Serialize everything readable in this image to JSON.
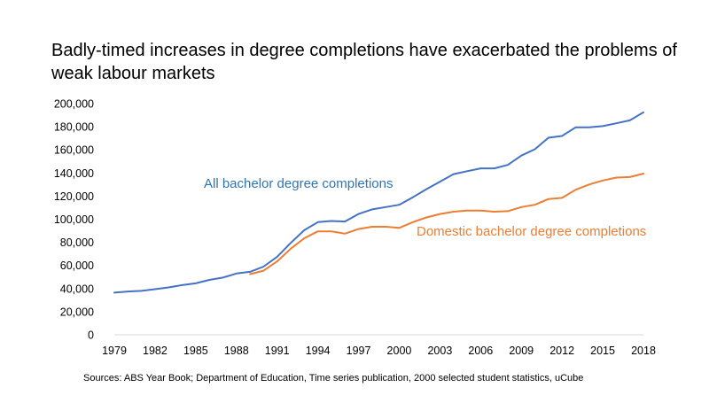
{
  "chart_data": {
    "type": "line",
    "title": "Badly-timed increases in degree completions have exacerbated the problems of weak labour markets",
    "source": "Sources: ABS Year Book; Department of Education, Time series publication, 2000 selected student statistics, uCube",
    "xlabel": "",
    "ylabel": "",
    "xlim": [
      1979,
      2018
    ],
    "ylim": [
      0,
      200000
    ],
    "x_ticks": [
      "1979",
      "1982",
      "1985",
      "1988",
      "1991",
      "1994",
      "1997",
      "2000",
      "2003",
      "2006",
      "2009",
      "2012",
      "2015",
      "2018"
    ],
    "y_ticks": [
      "0",
      "20,000",
      "40,000",
      "60,000",
      "80,000",
      "100,000",
      "120,000",
      "140,000",
      "160,000",
      "180,000",
      "200,000"
    ],
    "grid": false,
    "legend": "inline annotations",
    "series": [
      {
        "name": "All bachelor degree completions",
        "color": "#4472C4",
        "x": [
          1979,
          1980,
          1981,
          1982,
          1983,
          1984,
          1985,
          1986,
          1987,
          1988,
          1989,
          1990,
          1991,
          1992,
          1993,
          1994,
          1995,
          1996,
          1997,
          1998,
          1999,
          2000,
          2001,
          2002,
          2003,
          2004,
          2005,
          2006,
          2007,
          2008,
          2009,
          2010,
          2011,
          2012,
          2013,
          2014,
          2015,
          2016,
          2017,
          2018
        ],
        "values": [
          36500,
          37500,
          38000,
          39500,
          41000,
          43000,
          44500,
          47500,
          49500,
          53000,
          54500,
          59000,
          67500,
          79500,
          90500,
          97500,
          98500,
          98000,
          104500,
          108500,
          110500,
          112500,
          119000,
          126000,
          132500,
          139000,
          141500,
          144000,
          144000,
          147000,
          155000,
          160500,
          170500,
          172000,
          179500,
          179500,
          180500,
          183000,
          185500,
          192500
        ]
      },
      {
        "name": "Domestic bachelor degree completions",
        "color": "#ED7D31",
        "x": [
          1989,
          1990,
          1991,
          1992,
          1993,
          1994,
          1995,
          1996,
          1997,
          1998,
          1999,
          2000,
          2001,
          2002,
          2003,
          2004,
          2005,
          2006,
          2007,
          2008,
          2009,
          2010,
          2011,
          2012,
          2013,
          2014,
          2015,
          2016,
          2017,
          2018
        ],
        "values": [
          52500,
          55500,
          63500,
          74500,
          83500,
          89500,
          89500,
          87500,
          91500,
          93500,
          93500,
          92500,
          97500,
          101500,
          104500,
          106500,
          107500,
          107500,
          106500,
          107000,
          110500,
          112500,
          117500,
          118500,
          125500,
          130000,
          133500,
          136000,
          136500,
          139500
        ]
      }
    ]
  }
}
